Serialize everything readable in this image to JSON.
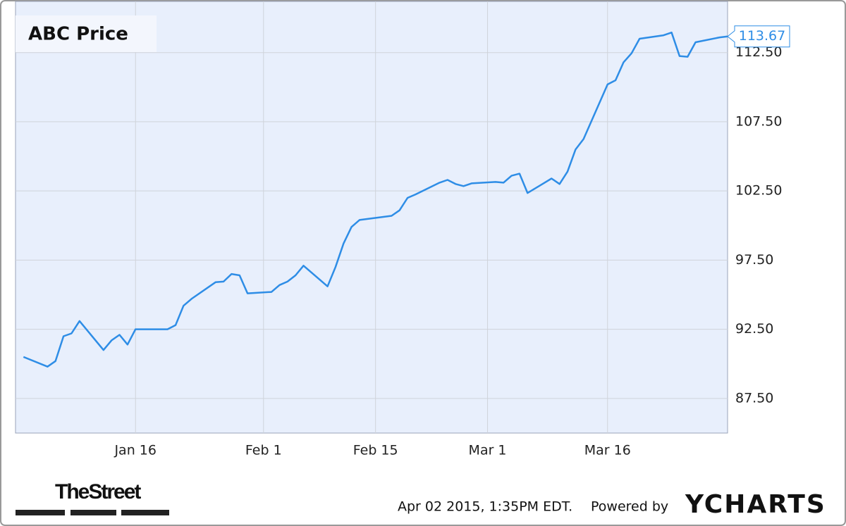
{
  "chart_data": {
    "type": "line",
    "title": "ABC Price",
    "x": [
      "Jan 2",
      "Jan 5",
      "Jan 6",
      "Jan 7",
      "Jan 8",
      "Jan 9",
      "Jan 12",
      "Jan 13",
      "Jan 14",
      "Jan 15",
      "Jan 16",
      "Jan 20",
      "Jan 21",
      "Jan 22",
      "Jan 23",
      "Jan 26",
      "Jan 27",
      "Jan 28",
      "Jan 29",
      "Jan 30",
      "Feb 2",
      "Feb 3",
      "Feb 4",
      "Feb 5",
      "Feb 6",
      "Feb 9",
      "Feb 10",
      "Feb 11",
      "Feb 12",
      "Feb 13",
      "Feb 17",
      "Feb 18",
      "Feb 19",
      "Feb 20",
      "Feb 23",
      "Feb 24",
      "Feb 25",
      "Feb 26",
      "Feb 27",
      "Mar 2",
      "Mar 3",
      "Mar 4",
      "Mar 5",
      "Mar 6",
      "Mar 9",
      "Mar 10",
      "Mar 11",
      "Mar 12",
      "Mar 13",
      "Mar 16",
      "Mar 17",
      "Mar 18",
      "Mar 19",
      "Mar 20",
      "Mar 23",
      "Mar 24",
      "Mar 25",
      "Mar 26",
      "Mar 27",
      "Mar 30",
      "Mar 31"
    ],
    "series": [
      {
        "name": "ABC Price",
        "color": "#2e8de6",
        "values": [
          90.5,
          89.8,
          90.2,
          92.0,
          92.2,
          93.1,
          91.0,
          91.7,
          92.1,
          91.4,
          92.5,
          92.5,
          92.8,
          94.2,
          94.7,
          95.9,
          95.95,
          96.5,
          96.4,
          95.1,
          95.2,
          95.7,
          95.95,
          96.4,
          97.1,
          95.6,
          97.0,
          98.7,
          99.9,
          100.4,
          100.7,
          101.1,
          102.0,
          102.25,
          103.1,
          103.3,
          103.0,
          102.85,
          103.05,
          103.15,
          103.1,
          103.6,
          103.75,
          102.35,
          103.4,
          103.0,
          103.9,
          105.5,
          106.25,
          110.2,
          110.5,
          111.8,
          112.45,
          113.5,
          113.75,
          113.95,
          112.25,
          112.2,
          113.25,
          113.6,
          113.67
        ]
      }
    ],
    "xlim": [
      "Jan 1",
      "Mar 31"
    ],
    "xticks": [
      "Jan 16",
      "Feb 1",
      "Feb 15",
      "Mar 1",
      "Mar 16"
    ],
    "ylim": [
      85,
      116.2
    ],
    "yticks": [
      {
        "value": 87.5,
        "label": "87.50"
      },
      {
        "value": 92.5,
        "label": "92.50"
      },
      {
        "value": 97.5,
        "label": "97.50"
      },
      {
        "value": 102.5,
        "label": "102.50"
      },
      {
        "value": 107.5,
        "label": "107.50"
      },
      {
        "value": 112.5,
        "label": "112.50"
      }
    ],
    "grid": true,
    "source": "TheStreet",
    "timestamp": "Apr 02 2015, 1:35PM EDT.",
    "powered_by": "Powered by",
    "brand": "YCHARTS"
  }
}
